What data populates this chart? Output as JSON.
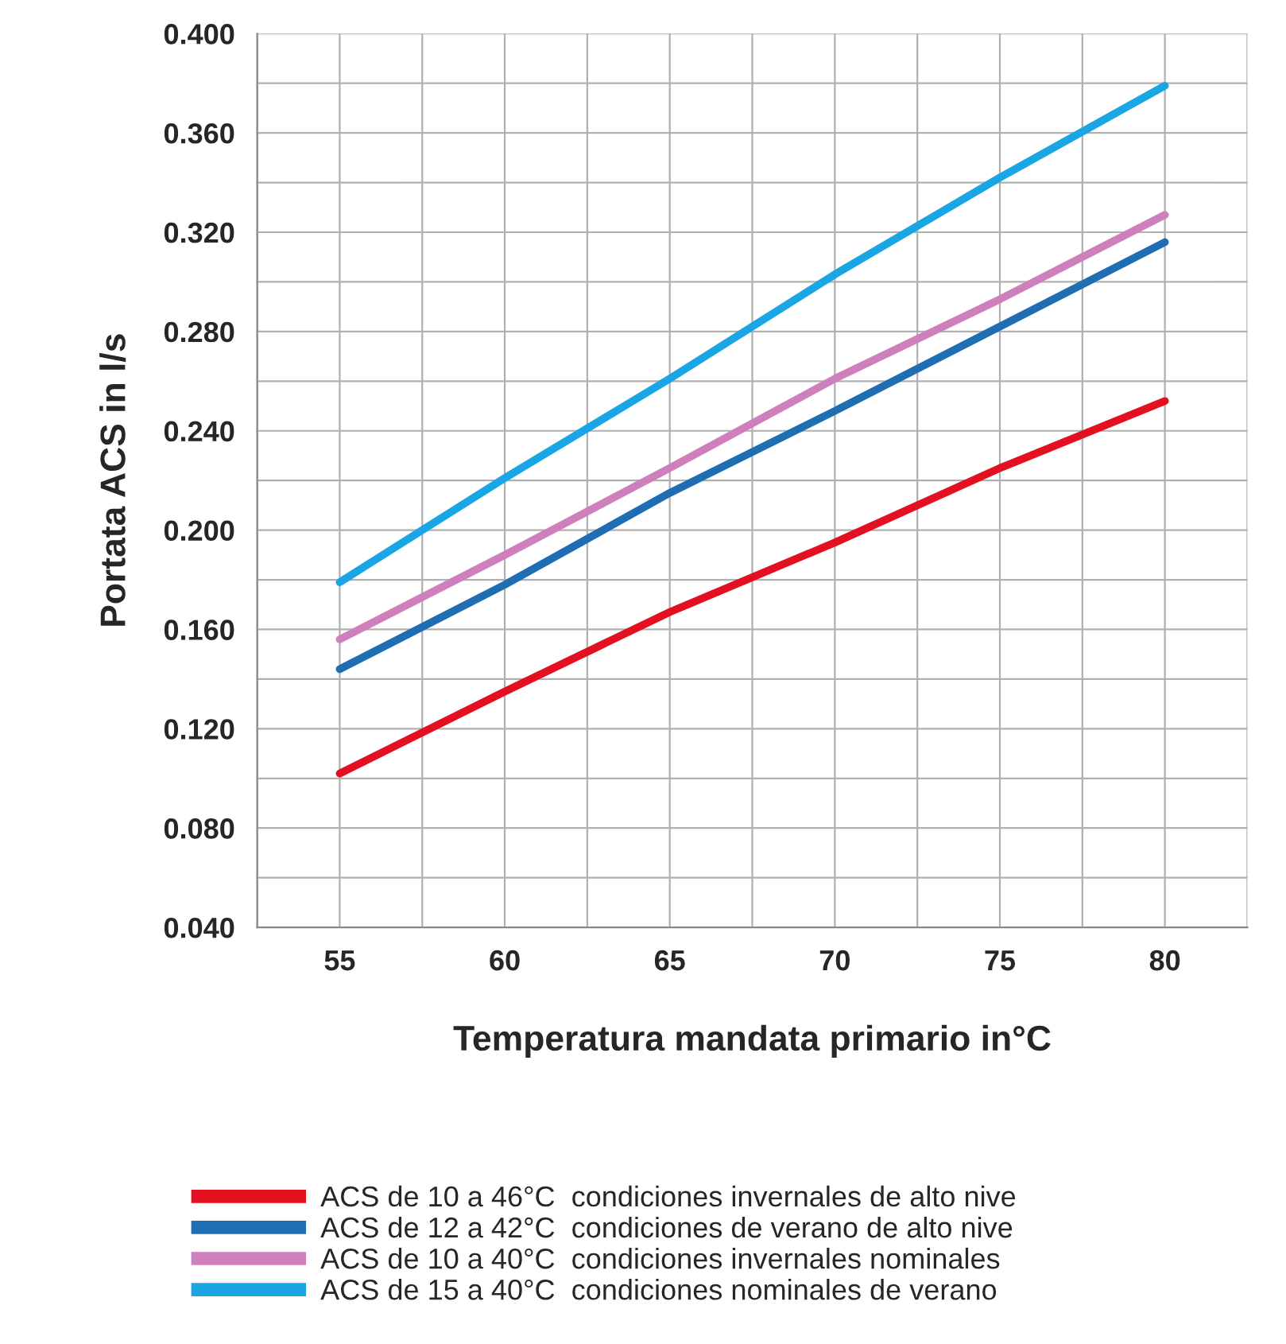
{
  "chart_data": {
    "type": "line",
    "xlabel": "Temperatura mandata primario in°C",
    "ylabel": "Portata ACS in l/s",
    "x": [
      55,
      60,
      65,
      70,
      75,
      80
    ],
    "series": [
      {
        "name": "ACS de 10 a 46°C  condiciones invernales de alto nive",
        "color": "#e3101f",
        "values": [
          0.102,
          0.135,
          0.167,
          0.195,
          0.225,
          0.252
        ]
      },
      {
        "name": "ACS de 12 a 42°C  condiciones de verano de alto nive",
        "color": "#1f6eb4",
        "values": [
          0.144,
          0.178,
          0.215,
          0.248,
          0.282,
          0.316
        ]
      },
      {
        "name": "ACS de 10 a 40°C  condiciones invernales nominales",
        "color": "#cf7fbb",
        "values": [
          0.156,
          0.19,
          0.225,
          0.261,
          0.293,
          0.327
        ]
      },
      {
        "name": "ACS de 15 a 40°C  condiciones nominales de verano",
        "color": "#1aa6e4",
        "values": [
          0.179,
          0.221,
          0.261,
          0.303,
          0.342,
          0.379
        ]
      }
    ],
    "xlim": [
      52.5,
      82.5
    ],
    "xticks": [
      {
        "value": 52.5,
        "label": null
      },
      55,
      {
        "value": 57.5,
        "label": null
      },
      60,
      {
        "value": 62.5,
        "label": null
      },
      65,
      {
        "value": 67.5,
        "label": null
      },
      70,
      {
        "value": 72.5,
        "label": null
      },
      75,
      {
        "value": 77.5,
        "label": null
      },
      80,
      {
        "value": 82.5,
        "label": null
      }
    ],
    "ylim": [
      0.04,
      0.4
    ],
    "yticks": [
      {
        "value": 0.04,
        "label": "0.040"
      },
      {
        "value": 0.06,
        "label": null
      },
      {
        "value": 0.08,
        "label": "0.080"
      },
      {
        "value": 0.1,
        "label": null
      },
      {
        "value": 0.12,
        "label": "0.120"
      },
      {
        "value": 0.14,
        "label": null
      },
      {
        "value": 0.16,
        "label": "0.160"
      },
      {
        "value": 0.18,
        "label": null
      },
      {
        "value": 0.2,
        "label": "0.200"
      },
      {
        "value": 0.22,
        "label": null
      },
      {
        "value": 0.24,
        "label": "0.240"
      },
      {
        "value": 0.26,
        "label": null
      },
      {
        "value": 0.28,
        "label": "0.280"
      },
      {
        "value": 0.3,
        "label": null
      },
      {
        "value": 0.32,
        "label": "0.320"
      },
      {
        "value": 0.34,
        "label": null
      },
      {
        "value": 0.36,
        "label": "0.360"
      },
      {
        "value": 0.38,
        "label": null
      },
      {
        "value": 0.4,
        "label": "0.400"
      }
    ],
    "grid": true,
    "legend": "bottom",
    "marker": "none",
    "line_style": "solid"
  }
}
